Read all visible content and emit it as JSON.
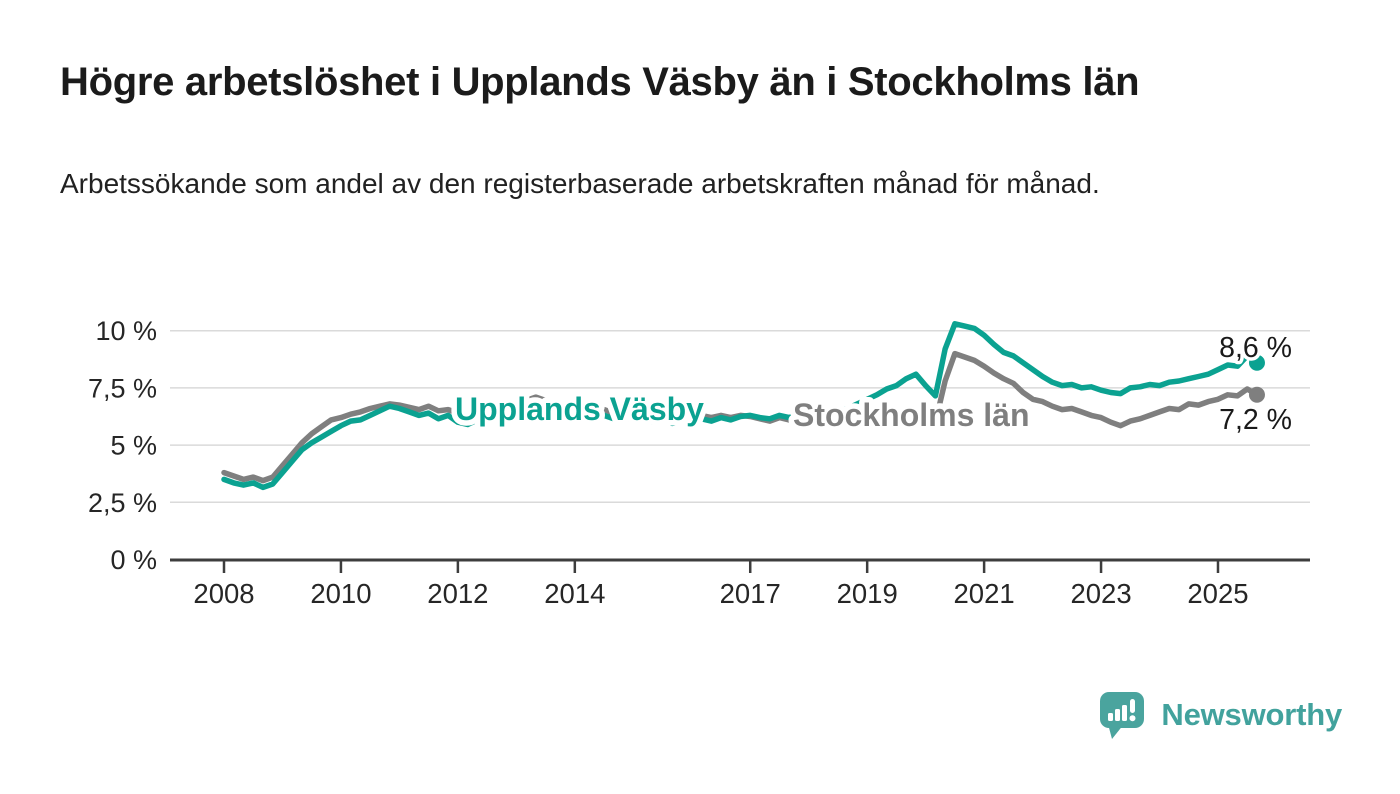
{
  "header": {
    "title": "Högre arbetslöshet i Upplands Väsby än i Stockholms län",
    "subtitle": "Arbetssökande som andel av den registerbaserade arbetskraften månad för månad."
  },
  "footer": {
    "logo_text": "Newsworthy",
    "logo_icon": "speech-bubble-with-bar-chart-and-exclamation",
    "brand_color": "#42a29d"
  },
  "chart_data": {
    "type": "line",
    "title": "Högre arbetslöshet i Upplands Väsby än i Stockholms län",
    "subtitle": "Arbetssökande som andel av den registerbaserade arbetskraften månad för månad.",
    "unit": "%",
    "grid": "horizontal",
    "legend": "inline-labels",
    "end_dots": true,
    "x_start_year": 2008.0,
    "x_step_years": 0.1666667,
    "xlim": [
      2007.1,
      2026.6
    ],
    "ylim": [
      0,
      10.6
    ],
    "y_axis_ticks": [
      {
        "value": 0,
        "label": "0 %"
      },
      {
        "value": 2.5,
        "label": "2,5 %"
      },
      {
        "value": 5,
        "label": "5 %"
      },
      {
        "value": 7.5,
        "label": "7,5 %"
      },
      {
        "value": 10,
        "label": "10 %"
      }
    ],
    "x_axis_ticks": [
      {
        "year": 2008,
        "label": "2008"
      },
      {
        "year": 2010,
        "label": "2010"
      },
      {
        "year": 2012,
        "label": "2012"
      },
      {
        "year": 2014,
        "label": "2014"
      },
      {
        "year": 2017,
        "label": "2017"
      },
      {
        "year": 2019,
        "label": "2019"
      },
      {
        "year": 2021,
        "label": "2021"
      },
      {
        "year": 2023,
        "label": "2023"
      },
      {
        "year": 2025,
        "label": "2025"
      }
    ],
    "series": [
      {
        "name": "Upplands Väsby",
        "color": "#0ba291",
        "end_label": "8,6 %",
        "end_value": 8.6,
        "values": [
          3.5,
          3.35,
          3.25,
          3.35,
          3.15,
          3.3,
          3.8,
          4.3,
          4.8,
          5.1,
          5.35,
          5.6,
          5.85,
          6.05,
          6.1,
          6.3,
          6.5,
          6.7,
          6.6,
          6.45,
          6.3,
          6.4,
          6.15,
          6.3,
          6.0,
          5.9,
          6.1,
          6.2,
          6.35,
          6.3,
          6.4,
          6.5,
          6.45,
          6.55,
          6.4,
          6.45,
          6.3,
          6.35,
          6.2,
          6.3,
          6.15,
          6.25,
          6.1,
          6.2,
          6.0,
          6.1,
          5.95,
          6.1,
          6.0,
          6.15,
          6.05,
          6.2,
          6.1,
          6.25,
          6.3,
          6.2,
          6.15,
          6.3,
          6.2,
          6.35,
          6.3,
          6.4,
          6.35,
          6.5,
          6.6,
          6.8,
          7.0,
          7.2,
          7.45,
          7.6,
          7.9,
          8.1,
          7.6,
          7.15,
          9.2,
          10.3,
          10.2,
          10.1,
          9.8,
          9.4,
          9.05,
          8.9,
          8.6,
          8.3,
          8.0,
          7.75,
          7.6,
          7.65,
          7.5,
          7.55,
          7.4,
          7.3,
          7.25,
          7.5,
          7.55,
          7.65,
          7.6,
          7.75,
          7.8,
          7.9,
          8.0,
          8.1,
          8.3,
          8.5,
          8.45,
          8.9,
          8.6
        ]
      },
      {
        "name": "Stockholms län",
        "color": "#7f7f7f",
        "end_label": "7,2 %",
        "end_value": 7.2,
        "values": [
          3.8,
          3.65,
          3.5,
          3.6,
          3.45,
          3.6,
          4.1,
          4.6,
          5.1,
          5.5,
          5.8,
          6.1,
          6.2,
          6.35,
          6.45,
          6.6,
          6.7,
          6.8,
          6.75,
          6.65,
          6.55,
          6.7,
          6.5,
          6.55,
          6.4,
          6.3,
          6.45,
          6.5,
          6.55,
          6.6,
          6.7,
          6.95,
          7.1,
          6.95,
          6.8,
          6.7,
          6.6,
          6.65,
          6.5,
          6.55,
          6.4,
          6.45,
          6.3,
          6.4,
          6.25,
          6.35,
          6.2,
          6.3,
          6.2,
          6.3,
          6.2,
          6.3,
          6.2,
          6.3,
          6.25,
          6.15,
          6.05,
          6.2,
          6.1,
          6.2,
          6.15,
          6.25,
          6.2,
          6.3,
          6.35,
          6.5,
          6.55,
          6.6,
          6.5,
          6.6,
          6.5,
          6.4,
          6.2,
          6.0,
          7.8,
          9.0,
          8.85,
          8.7,
          8.45,
          8.15,
          7.9,
          7.7,
          7.3,
          7.0,
          6.9,
          6.7,
          6.55,
          6.6,
          6.45,
          6.3,
          6.2,
          6.0,
          5.85,
          6.05,
          6.15,
          6.3,
          6.45,
          6.6,
          6.55,
          6.8,
          6.75,
          6.9,
          7.0,
          7.2,
          7.15,
          7.45,
          7.2
        ]
      }
    ]
  }
}
